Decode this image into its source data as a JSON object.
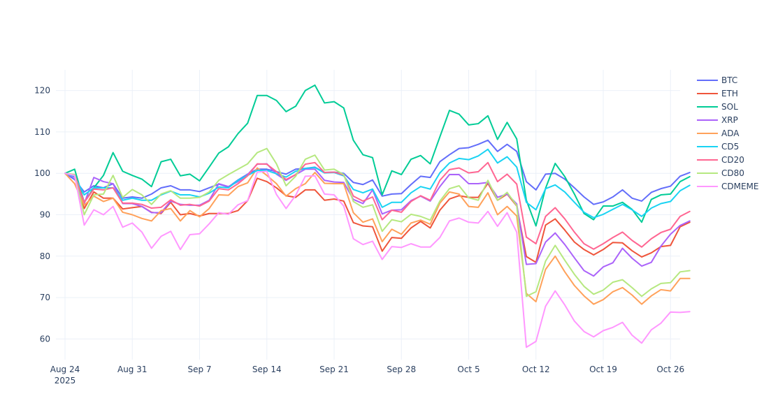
{
  "chart_data": {
    "type": "line",
    "title": "",
    "xlabel": "",
    "ylabel": "",
    "x_start": "2025-08-24",
    "x_end": "2025-10-27",
    "x_ticks": [
      {
        "date": "2025-08-24",
        "label": "Aug 24",
        "sublabel": "2025"
      },
      {
        "date": "2025-08-31",
        "label": "Aug 31",
        "sublabel": ""
      },
      {
        "date": "2025-09-07",
        "label": "Sep 7",
        "sublabel": ""
      },
      {
        "date": "2025-09-14",
        "label": "Sep 14",
        "sublabel": ""
      },
      {
        "date": "2025-09-21",
        "label": "Sep 21",
        "sublabel": ""
      },
      {
        "date": "2025-09-28",
        "label": "Sep 28",
        "sublabel": ""
      },
      {
        "date": "2025-10-05",
        "label": "Oct 5",
        "sublabel": ""
      },
      {
        "date": "2025-10-12",
        "label": "Oct 12",
        "sublabel": ""
      },
      {
        "date": "2025-10-19",
        "label": "Oct 19",
        "sublabel": ""
      },
      {
        "date": "2025-10-26",
        "label": "Oct 26",
        "sublabel": ""
      }
    ],
    "ylim": [
      55,
      125
    ],
    "y_ticks": [
      60,
      70,
      80,
      90,
      100,
      110,
      120
    ],
    "grid": true,
    "legend_position": "right",
    "series": [
      {
        "name": "BTC",
        "color": "#636efa",
        "values": [
          100,
          98.5,
          95.5,
          97,
          96.5,
          97.5,
          94,
          94.3,
          94,
          95,
          96.5,
          97,
          96,
          96,
          95.6,
          96.5,
          97.4,
          96.7,
          98.4,
          99.8,
          101,
          101,
          100.4,
          99.8,
          101,
          101.2,
          101.5,
          100.2,
          100.3,
          100,
          97.8,
          97.3,
          98.4,
          94.5,
          95,
          95.1,
          97.3,
          99.3,
          99,
          102.8,
          104.5,
          106,
          106.2,
          107,
          108,
          105.3,
          107,
          105.3,
          98,
          96,
          99.8,
          100,
          98.6,
          96.5,
          94.3,
          92.5,
          93.1,
          94.3,
          96,
          94,
          93.3,
          95.4,
          96.3,
          96.9,
          99.3,
          100.2
        ]
      },
      {
        "name": "ETH",
        "color": "#ef553b",
        "values": [
          100,
          99.5,
          91.5,
          95.5,
          94,
          94,
          91.4,
          91.7,
          92,
          90.6,
          90.3,
          93,
          90,
          90.3,
          89.7,
          90.3,
          90.3,
          90.3,
          91,
          93.4,
          98.8,
          98,
          96.5,
          94.6,
          94.2,
          96,
          96,
          93.5,
          93.8,
          93.3,
          88.1,
          87.3,
          87.1,
          81.2,
          84.5,
          84.3,
          86.8,
          88.4,
          86.8,
          91.1,
          93.8,
          94.6,
          94.2,
          94.2,
          97.6,
          93.5,
          95,
          92.1,
          79.9,
          78.5,
          87.5,
          89,
          86.3,
          83.4,
          81.6,
          80.3,
          81.6,
          83.3,
          83.2,
          81.3,
          79.8,
          80.8,
          82.3,
          82.6,
          87.1,
          88.2
        ]
      },
      {
        "name": "SOL",
        "color": "#00cc96",
        "values": [
          100,
          101,
          93,
          96.5,
          99.5,
          105,
          100.5,
          99.5,
          98.6,
          96.8,
          102.8,
          103.4,
          99.4,
          99.8,
          98.2,
          101.5,
          104.9,
          106.4,
          109.6,
          112.1,
          118.8,
          118.8,
          117.6,
          114.9,
          116.2,
          120,
          121.3,
          117,
          117.3,
          115.8,
          108,
          104.5,
          103.8,
          94.8,
          100.6,
          99.7,
          103.4,
          104.3,
          102.3,
          108.8,
          115.2,
          114.3,
          111.7,
          112,
          113.9,
          108.2,
          112.3,
          108.3,
          93.5,
          87.3,
          96.4,
          102.4,
          99.2,
          95,
          90.3,
          88.8,
          92.1,
          92.1,
          93,
          91.3,
          88.2,
          93.7,
          94.8,
          95,
          98,
          99.2
        ]
      },
      {
        "name": "XRP",
        "color": "#ab63fa",
        "values": [
          100,
          99,
          92.7,
          99,
          98,
          97.5,
          92.7,
          92.7,
          92,
          90.5,
          90.5,
          93.3,
          92.5,
          92.3,
          92.3,
          93.5,
          97.5,
          96.8,
          98,
          99.7,
          102.2,
          102.3,
          99.8,
          98.3,
          99.7,
          101,
          101,
          98.3,
          97.9,
          97.8,
          93.7,
          92.7,
          96,
          90.2,
          91.1,
          91.2,
          93.4,
          94.5,
          93.3,
          96.8,
          99.7,
          99.7,
          97.5,
          97.5,
          97.8,
          94.2,
          95,
          92.6,
          78,
          78.2,
          83.4,
          85.6,
          82.8,
          79.6,
          76.5,
          75.2,
          77.4,
          78.4,
          81.9,
          79.5,
          77.6,
          78.5,
          82.4,
          85.3,
          87.4,
          88.5
        ]
      },
      {
        "name": "ADA",
        "color": "#ffa15a",
        "values": [
          100,
          97.5,
          92.3,
          94.5,
          93.2,
          94,
          90.6,
          90,
          89.1,
          88.5,
          91,
          91.5,
          88.5,
          91,
          89.5,
          91.5,
          94.8,
          94.7,
          96.8,
          97.7,
          101.3,
          99.5,
          97.5,
          94.5,
          96.3,
          97.5,
          100.2,
          97.6,
          97.5,
          97.5,
          90.5,
          88.2,
          89,
          83.5,
          86.5,
          85.3,
          88,
          88.7,
          87.7,
          92.8,
          95.5,
          95,
          92,
          91.8,
          95.3,
          90,
          92,
          89.7,
          71,
          69,
          76.8,
          80,
          76.2,
          72.9,
          70.4,
          68.4,
          69.5,
          71.4,
          72.4,
          70.6,
          68.4,
          70.4,
          71.9,
          71.6,
          74.6,
          74.6
        ]
      },
      {
        "name": "CD5",
        "color": "#19d3f3",
        "values": [
          100,
          99.3,
          94.8,
          96.5,
          96.5,
          96.5,
          93.5,
          94,
          93.5,
          93.5,
          94.8,
          95.7,
          94.8,
          94.8,
          94.3,
          95.2,
          96.7,
          96.5,
          98.3,
          99.5,
          100.7,
          100.7,
          99.9,
          99.1,
          100.5,
          101.2,
          101.4,
          100.1,
          100.2,
          99.4,
          96.1,
          95.3,
          96.2,
          91.8,
          93,
          93,
          95.3,
          96.8,
          96.2,
          100.1,
          102.5,
          103.6,
          103.3,
          104.2,
          105.8,
          102.5,
          104,
          101.5,
          93,
          91.2,
          96.3,
          97.2,
          95.5,
          93,
          90.6,
          89.3,
          90.1,
          91.3,
          92.5,
          91.2,
          89.6,
          91.6,
          92.7,
          93.2,
          95.8,
          97.1
        ]
      },
      {
        "name": "CD20",
        "color": "#ff6692",
        "values": [
          100,
          99.7,
          93,
          96.2,
          96,
          96.5,
          92.8,
          92.8,
          92.5,
          91.6,
          91.8,
          93.6,
          92.3,
          92.5,
          92.1,
          93.3,
          96.3,
          96,
          97.5,
          99.4,
          102.3,
          102.2,
          100.4,
          98.5,
          99.7,
          102.2,
          102.6,
          100.2,
          100.3,
          99.6,
          94.5,
          93.3,
          94.3,
          88.8,
          91.1,
          90.6,
          93.2,
          94.6,
          93.5,
          98.3,
          100.9,
          101.3,
          100.1,
          100.4,
          102.6,
          98,
          99.8,
          97.4,
          84.6,
          83,
          89.6,
          91.7,
          89,
          85.8,
          83,
          81.7,
          83,
          84.5,
          85.8,
          83.8,
          82.2,
          84.2,
          85.7,
          86.5,
          89.6,
          90.8
        ]
      },
      {
        "name": "CD80",
        "color": "#b6e880",
        "values": [
          100,
          99.7,
          90,
          94.8,
          95,
          99.5,
          94.2,
          96.1,
          94.8,
          92.5,
          95,
          95.8,
          94,
          94,
          94.2,
          95.5,
          98.3,
          99.7,
          101,
          102.3,
          105,
          106,
          102.3,
          97,
          99.3,
          103.4,
          104.4,
          100.8,
          101,
          99.7,
          93.2,
          91.8,
          92.4,
          86,
          88.8,
          88.3,
          90.1,
          89.6,
          88.7,
          93.3,
          96.3,
          97,
          94.1,
          93.5,
          98.3,
          93.5,
          95.4,
          92.2,
          70.3,
          71.4,
          78.8,
          82.6,
          79,
          75.6,
          72.7,
          70.8,
          71.8,
          73.7,
          74.3,
          72.4,
          70.3,
          72.1,
          73.4,
          73.6,
          76.2,
          76.5
        ]
      },
      {
        "name": "CDMEME",
        "color": "#ff97ff",
        "values": [
          100,
          99.5,
          87.5,
          91.2,
          90,
          92,
          87,
          88,
          85.8,
          81.9,
          84.8,
          86,
          81.6,
          85.2,
          85.4,
          87.8,
          90.5,
          90.1,
          92.4,
          93.4,
          100.3,
          100.5,
          94.9,
          91.5,
          94.7,
          99.3,
          99.4,
          95,
          94.8,
          92.1,
          84.2,
          82.8,
          83.6,
          79.2,
          82.3,
          82.1,
          83,
          82.2,
          82.2,
          84.5,
          88.5,
          89.2,
          88.2,
          88,
          90.8,
          87.2,
          90.5,
          85.8,
          58,
          59.4,
          67.9,
          71.6,
          68.2,
          64.3,
          61.8,
          60.5,
          62,
          62.8,
          64,
          60.9,
          59,
          62.2,
          63.8,
          66.5,
          66.4,
          66.6
        ]
      }
    ]
  }
}
